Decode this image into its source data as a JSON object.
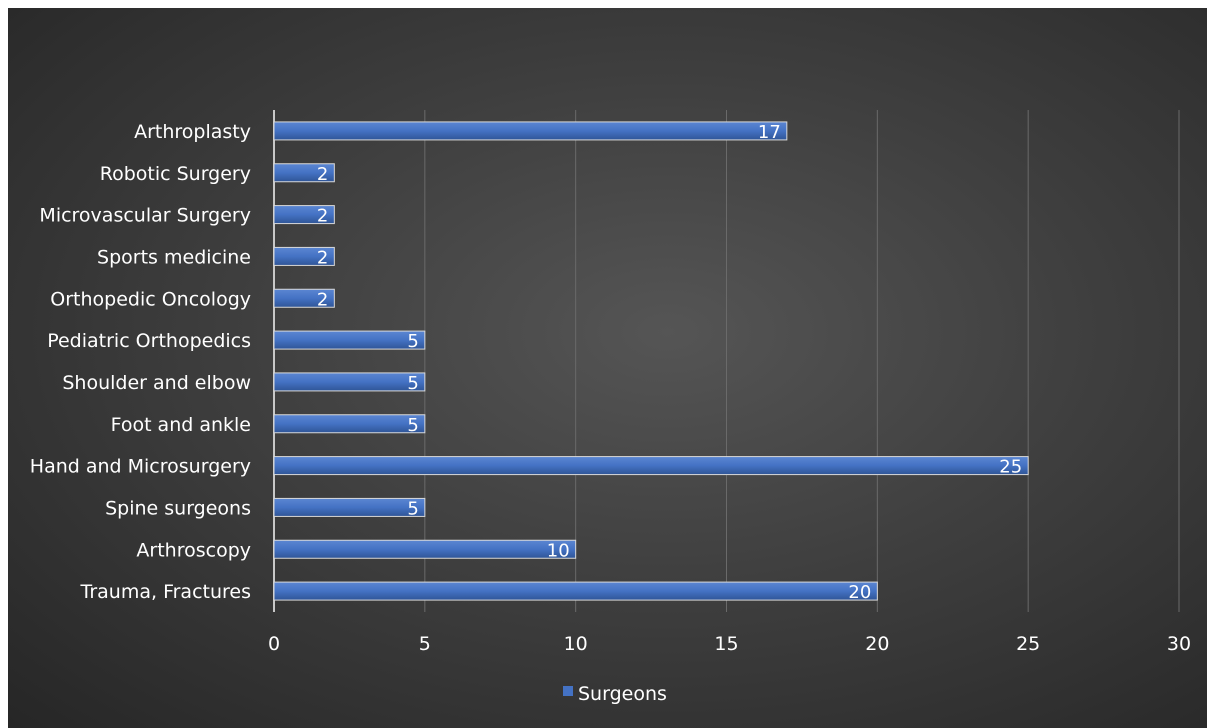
{
  "chart_data": {
    "type": "bar",
    "orientation": "horizontal",
    "categories": [
      "Trauma, Fractures",
      "Arthroscopy",
      "Spine surgeons",
      "Hand and Microsurgery",
      "Foot and ankle",
      "Shoulder and elbow",
      "Pediatric Orthopedics",
      "Orthopedic Oncology",
      "Sports medicine",
      "Microvascular Surgery",
      "Robotic Surgery",
      "Arthroplasty"
    ],
    "series": [
      {
        "name": "Surgeons",
        "values": [
          20,
          10,
          5,
          25,
          5,
          5,
          5,
          2,
          2,
          2,
          2,
          17
        ],
        "color": "#4472c4"
      }
    ],
    "xlim": [
      0,
      30
    ],
    "xticks": [
      0,
      5,
      10,
      15,
      20,
      25,
      30
    ],
    "grid": "vertical",
    "data_labels": true,
    "legend_position": "bottom",
    "background": "#3a3a3a"
  }
}
